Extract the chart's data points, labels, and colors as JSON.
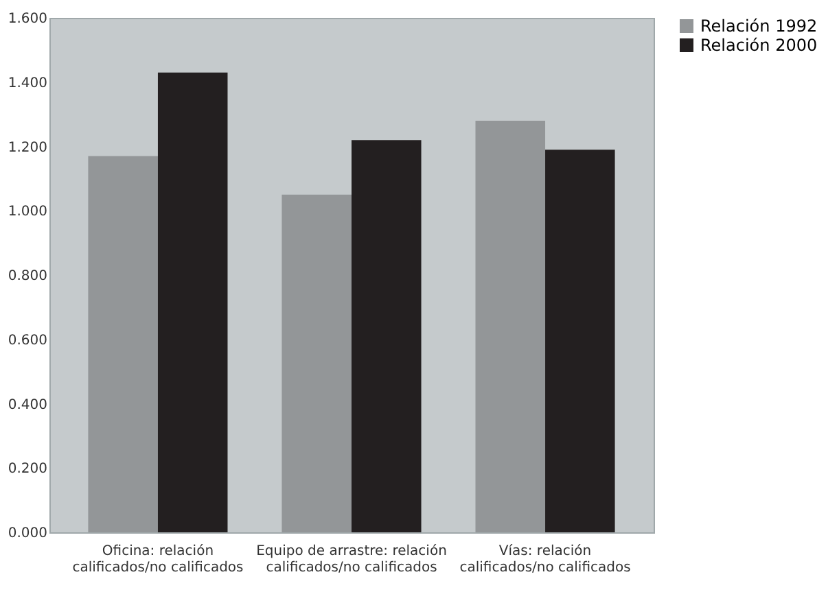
{
  "chart_data": {
    "type": "bar",
    "categories": [
      "Oficina: relación\ncalificados/no calificados",
      "Equipo de arrastre: relación\ncalificados/no calificados",
      "Vías: relación\ncalificados/no calificados"
    ],
    "series": [
      {
        "name": "Relación 1992",
        "color": "#939698",
        "values": [
          1.17,
          1.05,
          1.28
        ]
      },
      {
        "name": "Relación 2000",
        "color": "#231f20",
        "values": [
          1.43,
          1.22,
          1.19
        ]
      }
    ],
    "ylim": [
      0,
      1.6
    ],
    "yticks": [
      {
        "value": 0,
        "label": "0.000"
      },
      {
        "value": 0.2,
        "label": "0.200"
      },
      {
        "value": 0.4,
        "label": "0.400"
      },
      {
        "value": 0.6,
        "label": "0.600"
      },
      {
        "value": 0.8,
        "label": "0.800"
      },
      {
        "value": 1.0,
        "label": "1.000"
      },
      {
        "value": 1.2,
        "label": "1.200"
      },
      {
        "value": 1.4,
        "label": "1.400"
      },
      {
        "value": 1.6,
        "label": "1.600"
      }
    ],
    "grid": false,
    "legend": "right"
  }
}
